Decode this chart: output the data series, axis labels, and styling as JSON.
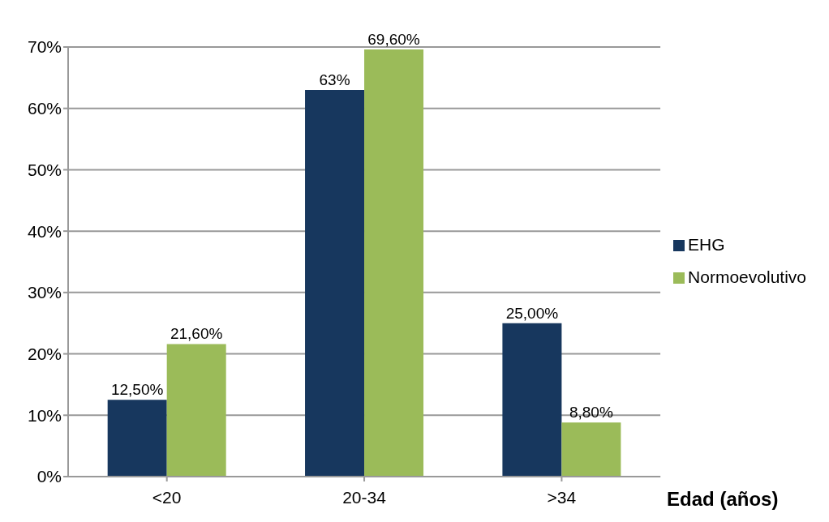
{
  "chart_data": {
    "type": "bar",
    "categories": [
      "<20",
      "20-34",
      ">34"
    ],
    "xlabel": "Edad (años)",
    "series": [
      {
        "name": "EHG",
        "color": "#17375e",
        "values": [
          12.5,
          63,
          25
        ],
        "value_labels": [
          "12,50%",
          "63%",
          "25,00%"
        ]
      },
      {
        "name": "Normoevolutivo",
        "color": "#9bbb59",
        "values": [
          21.6,
          69.6,
          8.8
        ],
        "value_labels": [
          "21,60%",
          "69,60%",
          "8,80%"
        ]
      }
    ],
    "ylim": [
      0,
      70
    ],
    "yticks": [
      {
        "value": 0,
        "label": "0%"
      },
      {
        "value": 10,
        "label": "10%"
      },
      {
        "value": 20,
        "label": "20%"
      },
      {
        "value": 30,
        "label": "30%"
      },
      {
        "value": 40,
        "label": "40%"
      },
      {
        "value": 50,
        "label": "50%"
      },
      {
        "value": 60,
        "label": "60%"
      },
      {
        "value": 70,
        "label": "70%"
      }
    ],
    "grid": "y",
    "legend": "right"
  }
}
